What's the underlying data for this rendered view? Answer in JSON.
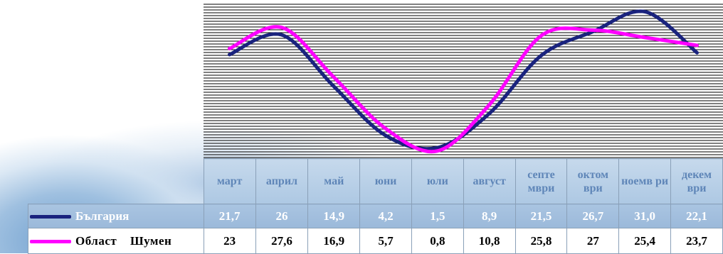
{
  "chart_data": {
    "type": "line",
    "categories": [
      "март",
      "април",
      "май",
      "юни",
      "юли",
      "август",
      "септе мври",
      "октом ври",
      "ноемв ри",
      "декем ври"
    ],
    "series": [
      {
        "name": "България",
        "color": "#1a237e",
        "values": [
          21.7,
          26,
          14.9,
          4.2,
          1.5,
          8.9,
          21.5,
          26.7,
          31.0,
          22.1
        ]
      },
      {
        "name": "Област  Шумен",
        "color": "#ff00ff",
        "values": [
          23,
          27.6,
          16.9,
          5.7,
          0.8,
          10.8,
          25.8,
          27,
          25.4,
          23.7
        ]
      }
    ],
    "table": {
      "header": [
        "март",
        "април",
        "май",
        "юни",
        "юли",
        "август",
        "септе мври",
        "октом ври",
        "ноемв ри",
        "декем ври"
      ],
      "rows": [
        {
          "label": "България",
          "cells": [
            "21,7",
            "26",
            "14,9",
            "4,2",
            "1,5",
            "8,9",
            "21,5",
            "26,7",
            "31,0",
            "22,1"
          ]
        },
        {
          "label": "Област  Шумен",
          "cells": [
            "23",
            "27,6",
            "16,9",
            "5,7",
            "0,8",
            "10,8",
            "25,8",
            "27",
            "25,4",
            "23,7"
          ]
        }
      ]
    },
    "legend": "left-of-table",
    "grid": true
  }
}
